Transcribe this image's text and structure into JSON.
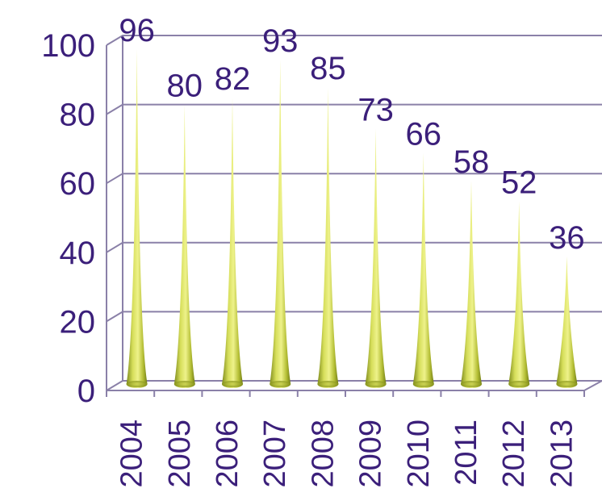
{
  "chart_data": {
    "type": "bar",
    "title": "",
    "xlabel": "",
    "ylabel": "",
    "categories": [
      "2004",
      "2005",
      "2006",
      "2007",
      "2008",
      "2009",
      "2010",
      "2011",
      "2012",
      "2013"
    ],
    "values": [
      96,
      80,
      82,
      93,
      85,
      73,
      66,
      58,
      52,
      36
    ],
    "ylim": [
      0,
      100
    ],
    "yticks": [
      "0",
      "20",
      "40",
      "60",
      "80",
      "100"
    ],
    "grid": true,
    "bar_shape": "cone",
    "colors": {
      "bar": "#b8c23a",
      "text": "#3b1f7a",
      "grid": "#8a80a8"
    }
  }
}
